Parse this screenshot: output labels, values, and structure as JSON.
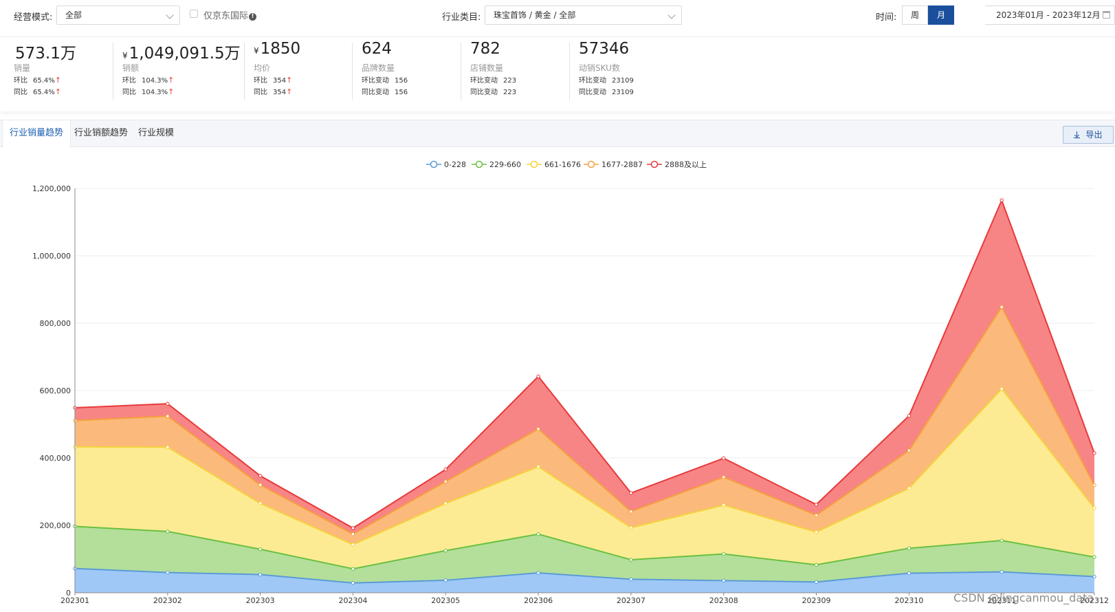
{
  "filters": {
    "mode_label": "经营模式:",
    "mode_value": "全部",
    "jd_intl_label": "仅京东国际",
    "industry_label": "行业类目:",
    "industry_value": "珠宝首饰 / 黄金 / 全部",
    "time_label": "时间:",
    "week_label": "周",
    "month_label": "月",
    "date_range": "2023年01月 - 2023年12月"
  },
  "kpis": [
    {
      "currency": "",
      "value": "573.1万",
      "name": "销量",
      "r1_label": "环比",
      "r1_value": "65.4%",
      "r2_label": "同比",
      "r2_value": "65.4%",
      "arrow": "↑"
    },
    {
      "currency": "¥",
      "value": "1,049,091.5万",
      "name": "销额",
      "r1_label": "环比",
      "r1_value": "104.3%",
      "r2_label": "同比",
      "r2_value": "104.3%",
      "arrow": "↑"
    },
    {
      "currency": "¥",
      "value": "1850",
      "name": "均价",
      "r1_label": "环比",
      "r1_value": "354",
      "r2_label": "同比",
      "r2_value": "354",
      "arrow": "↑"
    },
    {
      "currency": "",
      "value": "624",
      "name": "品牌数量",
      "r1_label": "环比变动",
      "r1_value": "156",
      "r2_label": "同比变动",
      "r2_value": "156",
      "arrow": ""
    },
    {
      "currency": "",
      "value": "782",
      "name": "店铺数量",
      "r1_label": "环比变动",
      "r1_value": "223",
      "r2_label": "同比变动",
      "r2_value": "223",
      "arrow": ""
    },
    {
      "currency": "",
      "value": "57346",
      "name": "动销SKU数",
      "r1_label": "环比变动",
      "r1_value": "23109",
      "r2_label": "同比变动",
      "r2_value": "23109",
      "arrow": ""
    }
  ],
  "tabs": [
    {
      "label": "行业销量趋势"
    },
    {
      "label": "行业销额趋势"
    },
    {
      "label": "行业规模"
    }
  ],
  "export_label": "导出",
  "watermark": "CSDN @jingcanmou_data",
  "chart_data": {
    "type": "area",
    "stacked": true,
    "title": "",
    "xlabel": "",
    "ylabel": "",
    "ylim": [
      0,
      1200000
    ],
    "yticks": [
      0,
      200000,
      400000,
      600000,
      800000,
      1000000,
      1200000
    ],
    "ytick_labels": [
      "0",
      "200,000",
      "400,000",
      "600,000",
      "800,000",
      "1,000,000",
      "1,200,000"
    ],
    "categories": [
      "202301",
      "202302",
      "202303",
      "202304",
      "202305",
      "202306",
      "202307",
      "202308",
      "202309",
      "202310",
      "202311",
      "202312"
    ],
    "legend_position": "top-center",
    "series": [
      {
        "name": "0-228",
        "color": "#5b9bd5",
        "fill": "#9fc8f7",
        "values": [
          72000,
          60000,
          54000,
          29000,
          37000,
          59000,
          40000,
          36000,
          32000,
          58000,
          62000,
          48000
        ]
      },
      {
        "name": "229-660",
        "color": "#6abf40",
        "fill": "#b3df9a",
        "values": [
          125000,
          122000,
          75000,
          42000,
          88000,
          115000,
          58000,
          79000,
          51000,
          74000,
          93000,
          58000
        ]
      },
      {
        "name": "661-1676",
        "color": "#f5d33b",
        "fill": "#fdeb94",
        "values": [
          236000,
          250000,
          136000,
          72000,
          140000,
          200000,
          95000,
          145000,
          97000,
          178000,
          450000,
          145000
        ]
      },
      {
        "name": "1677-2887",
        "color": "#f5a13b",
        "fill": "#fbba7c",
        "values": [
          78000,
          92000,
          55000,
          31000,
          65000,
          112000,
          48000,
          83000,
          50000,
          112000,
          243000,
          68000
        ]
      },
      {
        "name": "2888及以上",
        "color": "#e8393a",
        "fill": "#f78585",
        "values": [
          38000,
          37000,
          27000,
          18000,
          36000,
          156000,
          55000,
          56000,
          32000,
          103000,
          317000,
          95000
        ]
      }
    ]
  }
}
